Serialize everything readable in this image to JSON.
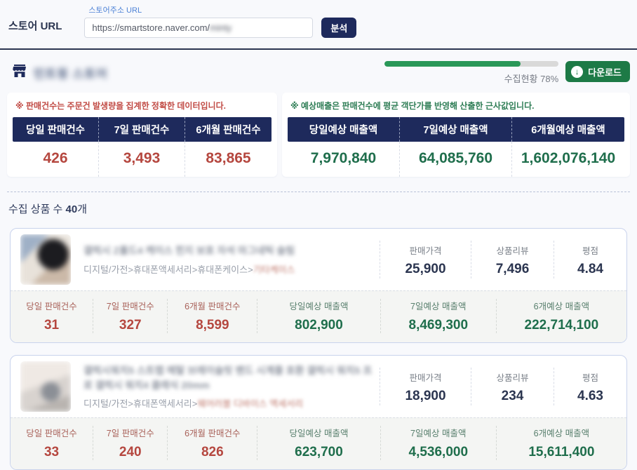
{
  "colors": {
    "navy": "#1e2a5c",
    "red_value": "#b5473f",
    "green_value": "#1f6e4c",
    "progress_green": "#2a9858",
    "download_green": "#1d7a46",
    "floating_label_blue": "#4d82d6"
  },
  "url_form": {
    "label": "스토어 URL",
    "floating_label": "스토어주소 URL",
    "input_value_visible": "https://smartstore.naver.com/",
    "input_value_blurred": "minty",
    "analyze_button": "분석"
  },
  "store_header": {
    "store_name_blurred": "민트윙 스토어",
    "progress_percent": 78,
    "progress_label": "수집현황 78%",
    "download_button": "다운로드",
    "download_icon": "download-circle-icon",
    "store_icon": "storefront-icon"
  },
  "sales_summary": {
    "note": "※ 판매건수는 주문건 발생량을 집계한 정확한 데이터입니다.",
    "columns": [
      "당일 판매건수",
      "7일 판매건수",
      "6개월 판매건수"
    ],
    "values": [
      "426",
      "3,493",
      "83,865"
    ]
  },
  "revenue_summary": {
    "note": "※ 예상매출은 판매건수에 평균 객단가를 반영해 산출한 근사값입니다.",
    "columns": [
      "당일예상 매출액",
      "7일예상 매출액",
      "6개월예상 매출액"
    ],
    "values": [
      "7,970,840",
      "64,085,760",
      "1,602,076,140"
    ]
  },
  "products_header": {
    "prefix": "수집 상품 수 ",
    "count": "40",
    "suffix": "개"
  },
  "products": [
    {
      "title_blurred": "갤럭시 Z폴드4 케이스 힌지 보호 자석 마그네틱 슬림",
      "category_visible": "디지털/가전>휴대폰액세서리>휴대폰케이스>",
      "category_blurred": "기타케이스",
      "price_label": "판매가격",
      "price": "25,900",
      "review_label": "상품리뷰",
      "reviews": "7,496",
      "rating_label": "평점",
      "rating": "4.84",
      "stats": [
        {
          "label": "당일 판매건수",
          "value": "31"
        },
        {
          "label": "7일 판매건수",
          "value": "327"
        },
        {
          "label": "6개월 판매건수",
          "value": "8,599"
        },
        {
          "label": "당일예상 매출액",
          "value": "802,900"
        },
        {
          "label": "7일예상 매출액",
          "value": "8,469,300"
        },
        {
          "label": "6개예상 매출액",
          "value": "222,714,100"
        }
      ]
    },
    {
      "title_blurred": "갤럭시워치5 스트랩 메탈 브레이슬릿 밴드 시계줄 호환 갤럭시 워치5 프로 갤럭시 워치4 클래식 20mm",
      "category_visible": "디지털/가전>휴대폰액세서리>",
      "category_blurred": "웨어러블 디바이스 액세서리",
      "price_label": "판매가격",
      "price": "18,900",
      "review_label": "상품리뷰",
      "reviews": "234",
      "rating_label": "평점",
      "rating": "4.63",
      "stats": [
        {
          "label": "당일 판매건수",
          "value": "33"
        },
        {
          "label": "7일 판매건수",
          "value": "240"
        },
        {
          "label": "6개월 판매건수",
          "value": "826"
        },
        {
          "label": "당일예상 매출액",
          "value": "623,700"
        },
        {
          "label": "7일예상 매출액",
          "value": "4,536,000"
        },
        {
          "label": "6개예상 매출액",
          "value": "15,611,400"
        }
      ]
    }
  ]
}
